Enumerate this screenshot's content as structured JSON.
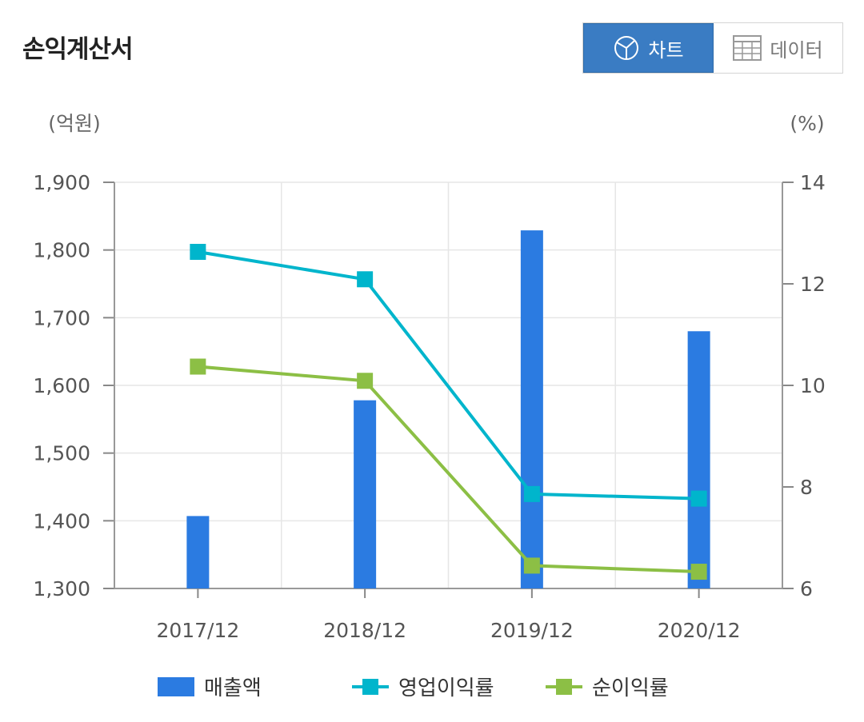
{
  "header": {
    "title": "손익계산서",
    "chart_label": "차트",
    "data_label": "데이터"
  },
  "colors": {
    "bar": "#2b7be1",
    "operating_margin": "#00b5cc",
    "net_margin": "#8cbf45",
    "active_toggle": "#3a7cc3"
  },
  "chart_data": {
    "type": "bar",
    "categories": [
      "2017/12",
      "2018/12",
      "2019/12",
      "2020/12"
    ],
    "left_axis_unit": "(억원)",
    "right_axis_unit": "(%)",
    "ylim_left": [
      1300,
      1900
    ],
    "yticks_left": [
      "1,300",
      "1,400",
      "1,500",
      "1,600",
      "1,700",
      "1,800",
      "1,900"
    ],
    "ylim_right": [
      6,
      14
    ],
    "yticks_right": [
      "6",
      "8",
      "10",
      "12",
      "14"
    ],
    "series": [
      {
        "name": "매출액",
        "type": "bar",
        "axis": "left",
        "values": [
          1407,
          1578,
          1829,
          1680
        ]
      },
      {
        "name": "영업이익률",
        "type": "line",
        "axis": "right",
        "values": [
          12.63,
          12.09,
          7.86,
          7.77
        ]
      },
      {
        "name": "순이익률",
        "type": "line",
        "axis": "right",
        "values": [
          10.37,
          10.09,
          6.45,
          6.33
        ]
      }
    ],
    "grid": true,
    "legend": "bottom"
  }
}
